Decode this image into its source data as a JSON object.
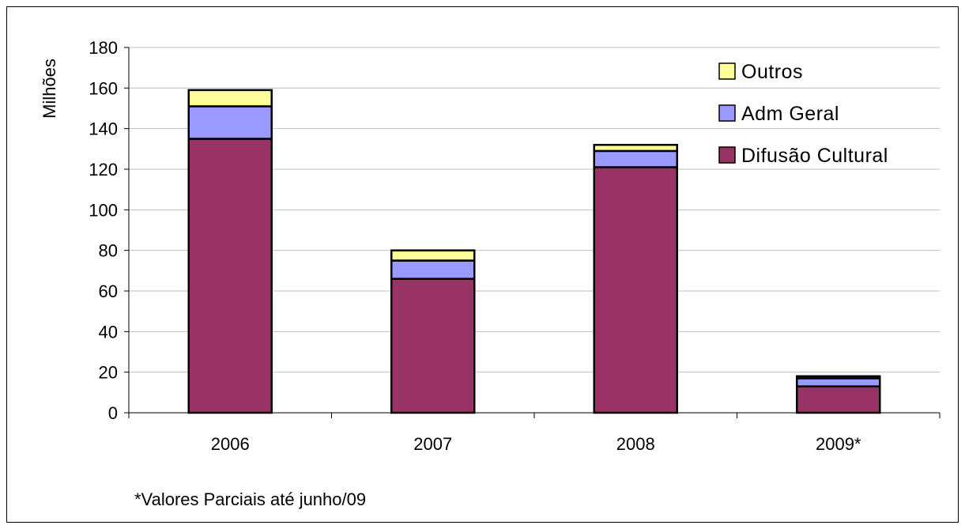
{
  "chart_data": {
    "type": "bar",
    "stacked": true,
    "categories": [
      "2006",
      "2007",
      "2008",
      "2009*"
    ],
    "series": [
      {
        "name": "Difusão Cultural",
        "color": "#993366",
        "values": [
          135,
          66,
          121,
          13
        ]
      },
      {
        "name": "Adm Geral",
        "color": "#9999ff",
        "values": [
          16,
          9,
          8,
          4
        ]
      },
      {
        "name": "Outros",
        "color": "#ffff99",
        "values": [
          8,
          5,
          3,
          1
        ]
      }
    ],
    "xlabel": "",
    "ylabel": "Milhões",
    "ylim": [
      0,
      180
    ],
    "yticks": [
      0,
      20,
      40,
      60,
      80,
      100,
      120,
      140,
      160,
      180
    ],
    "grid": true,
    "legend_position": "top-right",
    "legend_order": [
      "Outros",
      "Adm Geral",
      "Difusão Cultural"
    ],
    "note": "*Valores Parciais até junho/09"
  }
}
